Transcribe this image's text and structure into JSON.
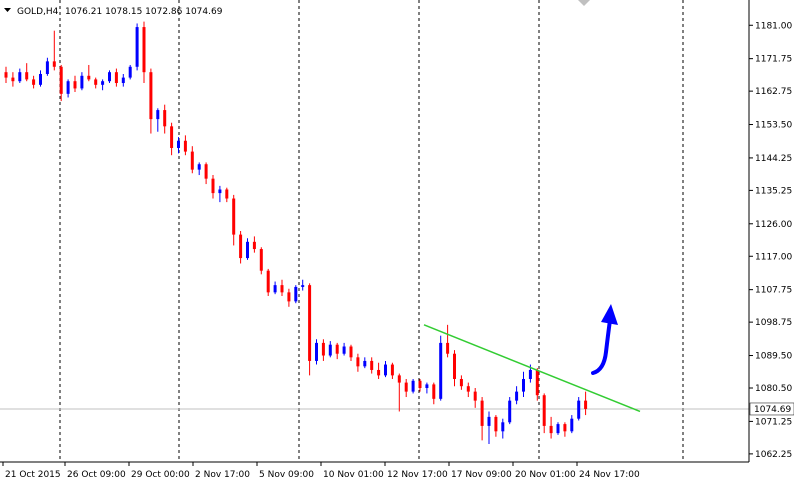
{
  "header": {
    "symbol": "GOLD,H4",
    "ohlc": "1076.21 1078.15 1072.86 1074.69"
  },
  "chart_data": {
    "type": "candlestick",
    "symbol": "GOLD",
    "timeframe": "H4",
    "ylim": [
      1060.0,
      1188.0
    ],
    "y_ticks": [
      "1181.00",
      "1171.75",
      "1162.75",
      "1153.50",
      "1144.25",
      "1135.25",
      "1126.00",
      "1117.00",
      "1107.75",
      "1098.75",
      "1089.50",
      "1080.50",
      "1071.25",
      "1062.25"
    ],
    "x_labels": [
      "21 Oct 2015",
      "26 Oct 09:00",
      "29 Oct 00:00",
      "2 Nov 17:00",
      "5 Nov 09:00",
      "10 Nov 01:00",
      "12 Nov 17:00",
      "17 Nov 09:00",
      "20 Nov 01:00",
      "24 Nov 17:00"
    ],
    "current_price": "1074.69",
    "grid": "vertical dashed separators",
    "trendline": {
      "from": {
        "bar": 0.42,
        "price": 1098.0
      },
      "to": {
        "bar": 0.0,
        "price": 1074.0
      }
    },
    "colors": {
      "bull": "#0000ff",
      "bear": "#ff0000",
      "trendline": "#33cc33",
      "arrow": "#0000ff",
      "price_line": "#c0c0c0"
    },
    "candles": [
      [
        1168.0,
        1169.5,
        1165.0,
        1166.5
      ],
      [
        1166.5,
        1168.0,
        1164.0,
        1165.5
      ],
      [
        1165.5,
        1169.0,
        1165.0,
        1168.0
      ],
      [
        1168.0,
        1170.5,
        1165.5,
        1166.0
      ],
      [
        1166.0,
        1167.0,
        1163.5,
        1164.5
      ],
      [
        1164.5,
        1168.5,
        1164.0,
        1167.5
      ],
      [
        1167.5,
        1172.0,
        1167.0,
        1171.0
      ],
      [
        1171.0,
        1179.5,
        1168.5,
        1169.5
      ],
      [
        1169.5,
        1170.0,
        1160.0,
        1162.0
      ],
      [
        1162.0,
        1166.0,
        1161.0,
        1165.5
      ],
      [
        1165.5,
        1167.0,
        1162.5,
        1163.5
      ],
      [
        1163.5,
        1168.0,
        1163.0,
        1167.0
      ],
      [
        1167.0,
        1170.0,
        1165.5,
        1166.0
      ],
      [
        1166.0,
        1166.5,
        1163.5,
        1164.5
      ],
      [
        1164.5,
        1166.0,
        1163.0,
        1165.5
      ],
      [
        1165.5,
        1168.5,
        1165.0,
        1168.0
      ],
      [
        1168.0,
        1169.0,
        1164.0,
        1165.0
      ],
      [
        1165.0,
        1167.5,
        1164.0,
        1166.5
      ],
      [
        1166.5,
        1170.0,
        1166.0,
        1169.5
      ],
      [
        1169.5,
        1181.5,
        1168.5,
        1180.5
      ],
      [
        1180.5,
        1182.0,
        1165.0,
        1168.0
      ],
      [
        1168.0,
        1169.0,
        1151.0,
        1155.0
      ],
      [
        1155.0,
        1158.0,
        1151.5,
        1157.5
      ],
      [
        1157.5,
        1159.0,
        1151.0,
        1153.0
      ],
      [
        1153.0,
        1154.0,
        1145.0,
        1147.0
      ],
      [
        1147.0,
        1150.0,
        1145.5,
        1149.0
      ],
      [
        1149.0,
        1150.5,
        1145.0,
        1146.0
      ],
      [
        1146.0,
        1147.5,
        1140.0,
        1141.0
      ],
      [
        1141.0,
        1143.0,
        1139.5,
        1142.5
      ],
      [
        1142.5,
        1143.0,
        1137.0,
        1138.5
      ],
      [
        1138.5,
        1139.5,
        1133.0,
        1134.5
      ],
      [
        1134.5,
        1136.5,
        1132.0,
        1135.5
      ],
      [
        1135.5,
        1136.0,
        1132.0,
        1133.0
      ],
      [
        1133.0,
        1134.0,
        1120.0,
        1123.0
      ],
      [
        1123.0,
        1124.0,
        1115.0,
        1116.5
      ],
      [
        1116.5,
        1122.0,
        1116.0,
        1121.0
      ],
      [
        1121.0,
        1122.5,
        1118.0,
        1119.0
      ],
      [
        1119.0,
        1119.5,
        1112.0,
        1113.0
      ],
      [
        1113.0,
        1113.5,
        1106.0,
        1107.0
      ],
      [
        1107.0,
        1110.0,
        1106.5,
        1109.0
      ],
      [
        1109.0,
        1110.5,
        1106.0,
        1107.0
      ],
      [
        1107.0,
        1108.0,
        1103.0,
        1104.5
      ],
      [
        1104.5,
        1109.0,
        1104.0,
        1108.5
      ],
      [
        1108.5,
        1110.5,
        1107.5,
        1109.0
      ],
      [
        1109.0,
        1109.5,
        1084.0,
        1088.0
      ],
      [
        1088.0,
        1094.0,
        1087.0,
        1093.0
      ],
      [
        1093.0,
        1094.0,
        1088.0,
        1089.5
      ],
      [
        1089.5,
        1093.5,
        1089.0,
        1092.5
      ],
      [
        1092.5,
        1093.0,
        1088.5,
        1090.0
      ],
      [
        1090.0,
        1093.0,
        1089.5,
        1092.0
      ],
      [
        1092.0,
        1092.5,
        1088.0,
        1089.0
      ],
      [
        1089.0,
        1090.0,
        1085.0,
        1086.5
      ],
      [
        1086.5,
        1089.0,
        1086.0,
        1088.0
      ],
      [
        1088.0,
        1089.0,
        1084.5,
        1085.5
      ],
      [
        1085.5,
        1087.5,
        1083.0,
        1084.0
      ],
      [
        1084.0,
        1088.0,
        1083.5,
        1087.0
      ],
      [
        1087.0,
        1087.5,
        1083.0,
        1084.0
      ],
      [
        1084.0,
        1084.5,
        1074.0,
        1082.0
      ],
      [
        1082.0,
        1083.0,
        1078.0,
        1079.5
      ],
      [
        1079.5,
        1083.0,
        1079.0,
        1082.5
      ],
      [
        1082.5,
        1083.0,
        1079.5,
        1080.5
      ],
      [
        1080.5,
        1082.0,
        1079.0,
        1081.5
      ],
      [
        1081.5,
        1082.0,
        1076.0,
        1077.5
      ],
      [
        1077.5,
        1095.0,
        1077.0,
        1093.0
      ],
      [
        1093.0,
        1098.0,
        1089.0,
        1090.0
      ],
      [
        1090.0,
        1091.0,
        1081.0,
        1083.0
      ],
      [
        1083.0,
        1084.0,
        1080.0,
        1081.0
      ],
      [
        1081.0,
        1082.0,
        1078.0,
        1079.5
      ],
      [
        1079.5,
        1080.5,
        1075.0,
        1077.0
      ],
      [
        1077.0,
        1078.0,
        1066.0,
        1070.0
      ],
      [
        1070.0,
        1074.0,
        1065.0,
        1072.5
      ],
      [
        1072.5,
        1073.0,
        1067.0,
        1068.5
      ],
      [
        1068.5,
        1072.0,
        1066.5,
        1071.0
      ],
      [
        1071.0,
        1078.0,
        1070.5,
        1077.0
      ],
      [
        1077.0,
        1081.0,
        1076.0,
        1079.5
      ],
      [
        1079.5,
        1085.0,
        1078.0,
        1083.0
      ],
      [
        1083.0,
        1087.0,
        1082.0,
        1085.5
      ],
      [
        1085.5,
        1086.0,
        1077.0,
        1078.5
      ],
      [
        1078.5,
        1079.0,
        1068.0,
        1070.0
      ],
      [
        1070.0,
        1072.5,
        1066.5,
        1068.0
      ],
      [
        1068.0,
        1071.0,
        1067.5,
        1070.5
      ],
      [
        1070.5,
        1071.0,
        1067.0,
        1068.5
      ],
      [
        1068.5,
        1073.0,
        1068.0,
        1072.0
      ],
      [
        1072.0,
        1078.0,
        1071.5,
        1077.0
      ],
      [
        1077.0,
        1079.5,
        1073.0,
        1074.69
      ]
    ]
  }
}
